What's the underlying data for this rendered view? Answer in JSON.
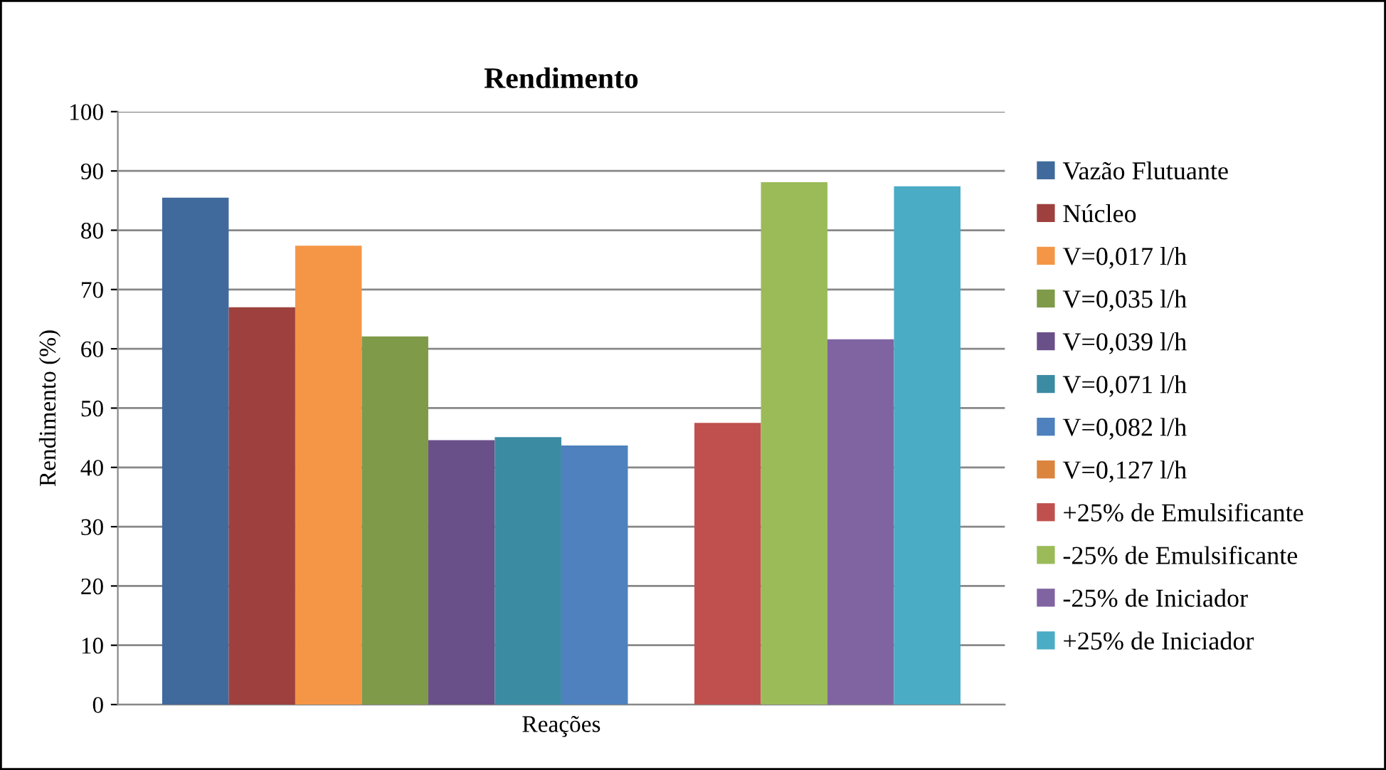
{
  "chart_data": {
    "type": "bar",
    "title": "Rendimento",
    "xlabel": "Reações",
    "ylabel": "Rendimento (%)",
    "categories": [
      null
    ],
    "series": [
      {
        "name": "Vazão Flutuante",
        "color": "#416a9c",
        "values": [
          85.5
        ]
      },
      {
        "name": "Núcleo",
        "color": "#9e413e",
        "values": [
          67.0
        ]
      },
      {
        "name": "V=0,017 l/h",
        "color": "#f59646",
        "values": [
          77.4
        ]
      },
      {
        "name": "V=0,035 l/h",
        "color": "#7f9a48",
        "values": [
          62.1
        ]
      },
      {
        "name": "V=0,039 l/h",
        "color": "#6a5089",
        "values": [
          44.6
        ]
      },
      {
        "name": "V=0,071 l/h",
        "color": "#3b8ba3",
        "values": [
          45.1
        ]
      },
      {
        "name": "V=0,082 l/h",
        "color": "#4e81bd",
        "values": [
          43.7
        ]
      },
      {
        "name": "V=0,127 l/h",
        "color": "#db843d",
        "values": [
          null
        ]
      },
      {
        "name": "+25% de Emulsificante",
        "color": "#c0504d",
        "values": [
          47.5
        ]
      },
      {
        "name": "-25% de Emulsificante",
        "color": "#9bbb59",
        "values": [
          88.1
        ]
      },
      {
        "name": "-25% de Iniciador",
        "color": "#8064a2",
        "values": [
          61.6
        ]
      },
      {
        "name": "+25% de Iniciador",
        "color": "#4bacc6",
        "values": [
          87.4
        ]
      }
    ],
    "ylim": [
      0,
      100
    ],
    "yticks": [
      0,
      10,
      20,
      30,
      40,
      50,
      60,
      70,
      80,
      90,
      100
    ],
    "grid": "y",
    "legend": "right"
  }
}
